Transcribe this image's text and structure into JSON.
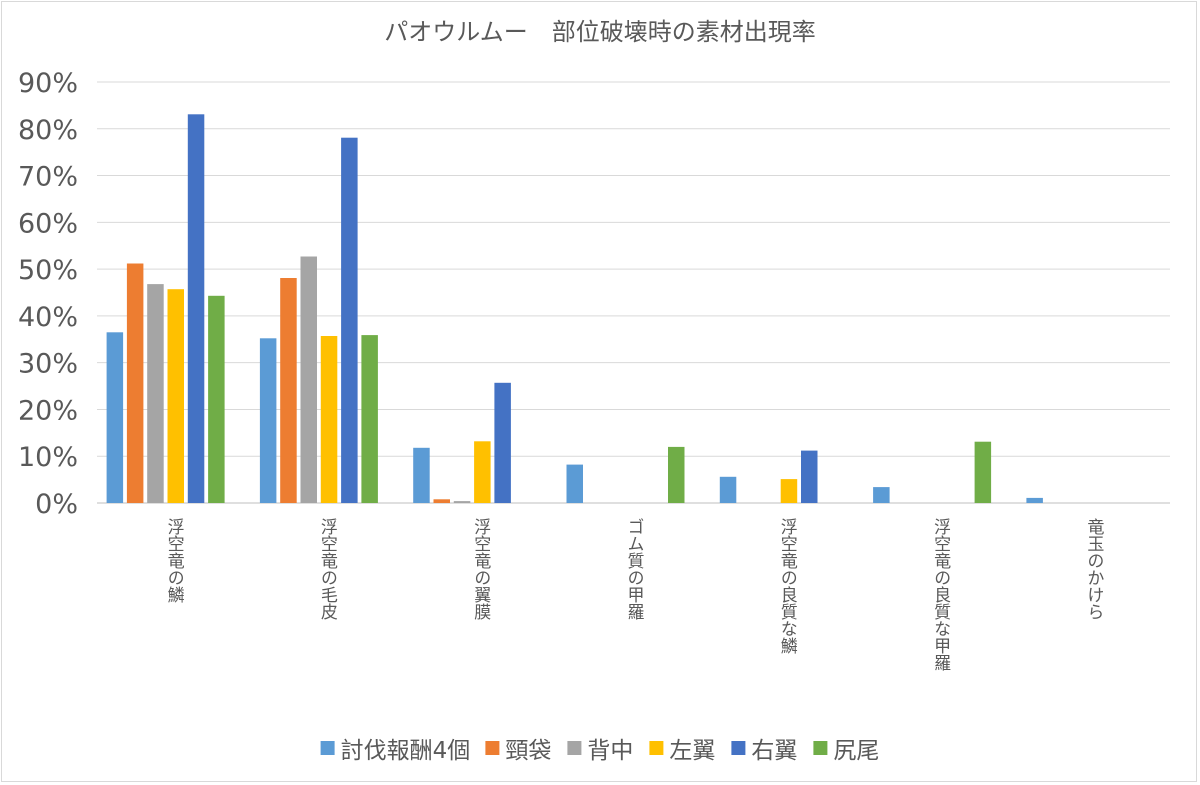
{
  "chart_data": {
    "type": "bar",
    "title": "パオウルムー　部位破壊時の素材出現率",
    "xlabel": "",
    "ylabel": "",
    "ylim": [
      0,
      0.9
    ],
    "ytick_values": [
      0,
      0.1,
      0.2,
      0.3,
      0.4,
      0.5,
      0.6,
      0.7,
      0.8,
      0.9
    ],
    "ytick_labels": [
      "0%",
      "10%",
      "20%",
      "30%",
      "40%",
      "50%",
      "60%",
      "70%",
      "80%",
      "90%"
    ],
    "grid": true,
    "legend_position": "bottom",
    "categories": [
      "浮空竜の鱗",
      "浮空竜の毛皮",
      "浮空竜の翼膜",
      "ゴム質の甲羅",
      "浮空竜の良質な鱗",
      "浮空竜の良質な甲羅",
      "竜玉のかけら"
    ],
    "series": [
      {
        "name": "討伐報酬4個",
        "color": "#5b9bd5",
        "values": [
          0.365,
          0.352,
          0.118,
          0.082,
          0.056,
          0.034,
          0.011
        ]
      },
      {
        "name": "頸袋",
        "color": "#ed7d31",
        "values": [
          0.512,
          0.481,
          0.008,
          0,
          0,
          0,
          0
        ]
      },
      {
        "name": "背中",
        "color": "#a5a5a5",
        "values": [
          0.468,
          0.527,
          0.004,
          0,
          0,
          0,
          0
        ]
      },
      {
        "name": "左翼",
        "color": "#ffc000",
        "values": [
          0.457,
          0.357,
          0.132,
          0,
          0.051,
          0,
          0
        ]
      },
      {
        "name": "右翼",
        "color": "#4472c4",
        "values": [
          0.831,
          0.781,
          0.257,
          0,
          0.112,
          0,
          0
        ]
      },
      {
        "name": "尻尾",
        "color": "#70ad47",
        "values": [
          0.443,
          0.359,
          0,
          0.12,
          0,
          0.131,
          0
        ]
      }
    ]
  }
}
